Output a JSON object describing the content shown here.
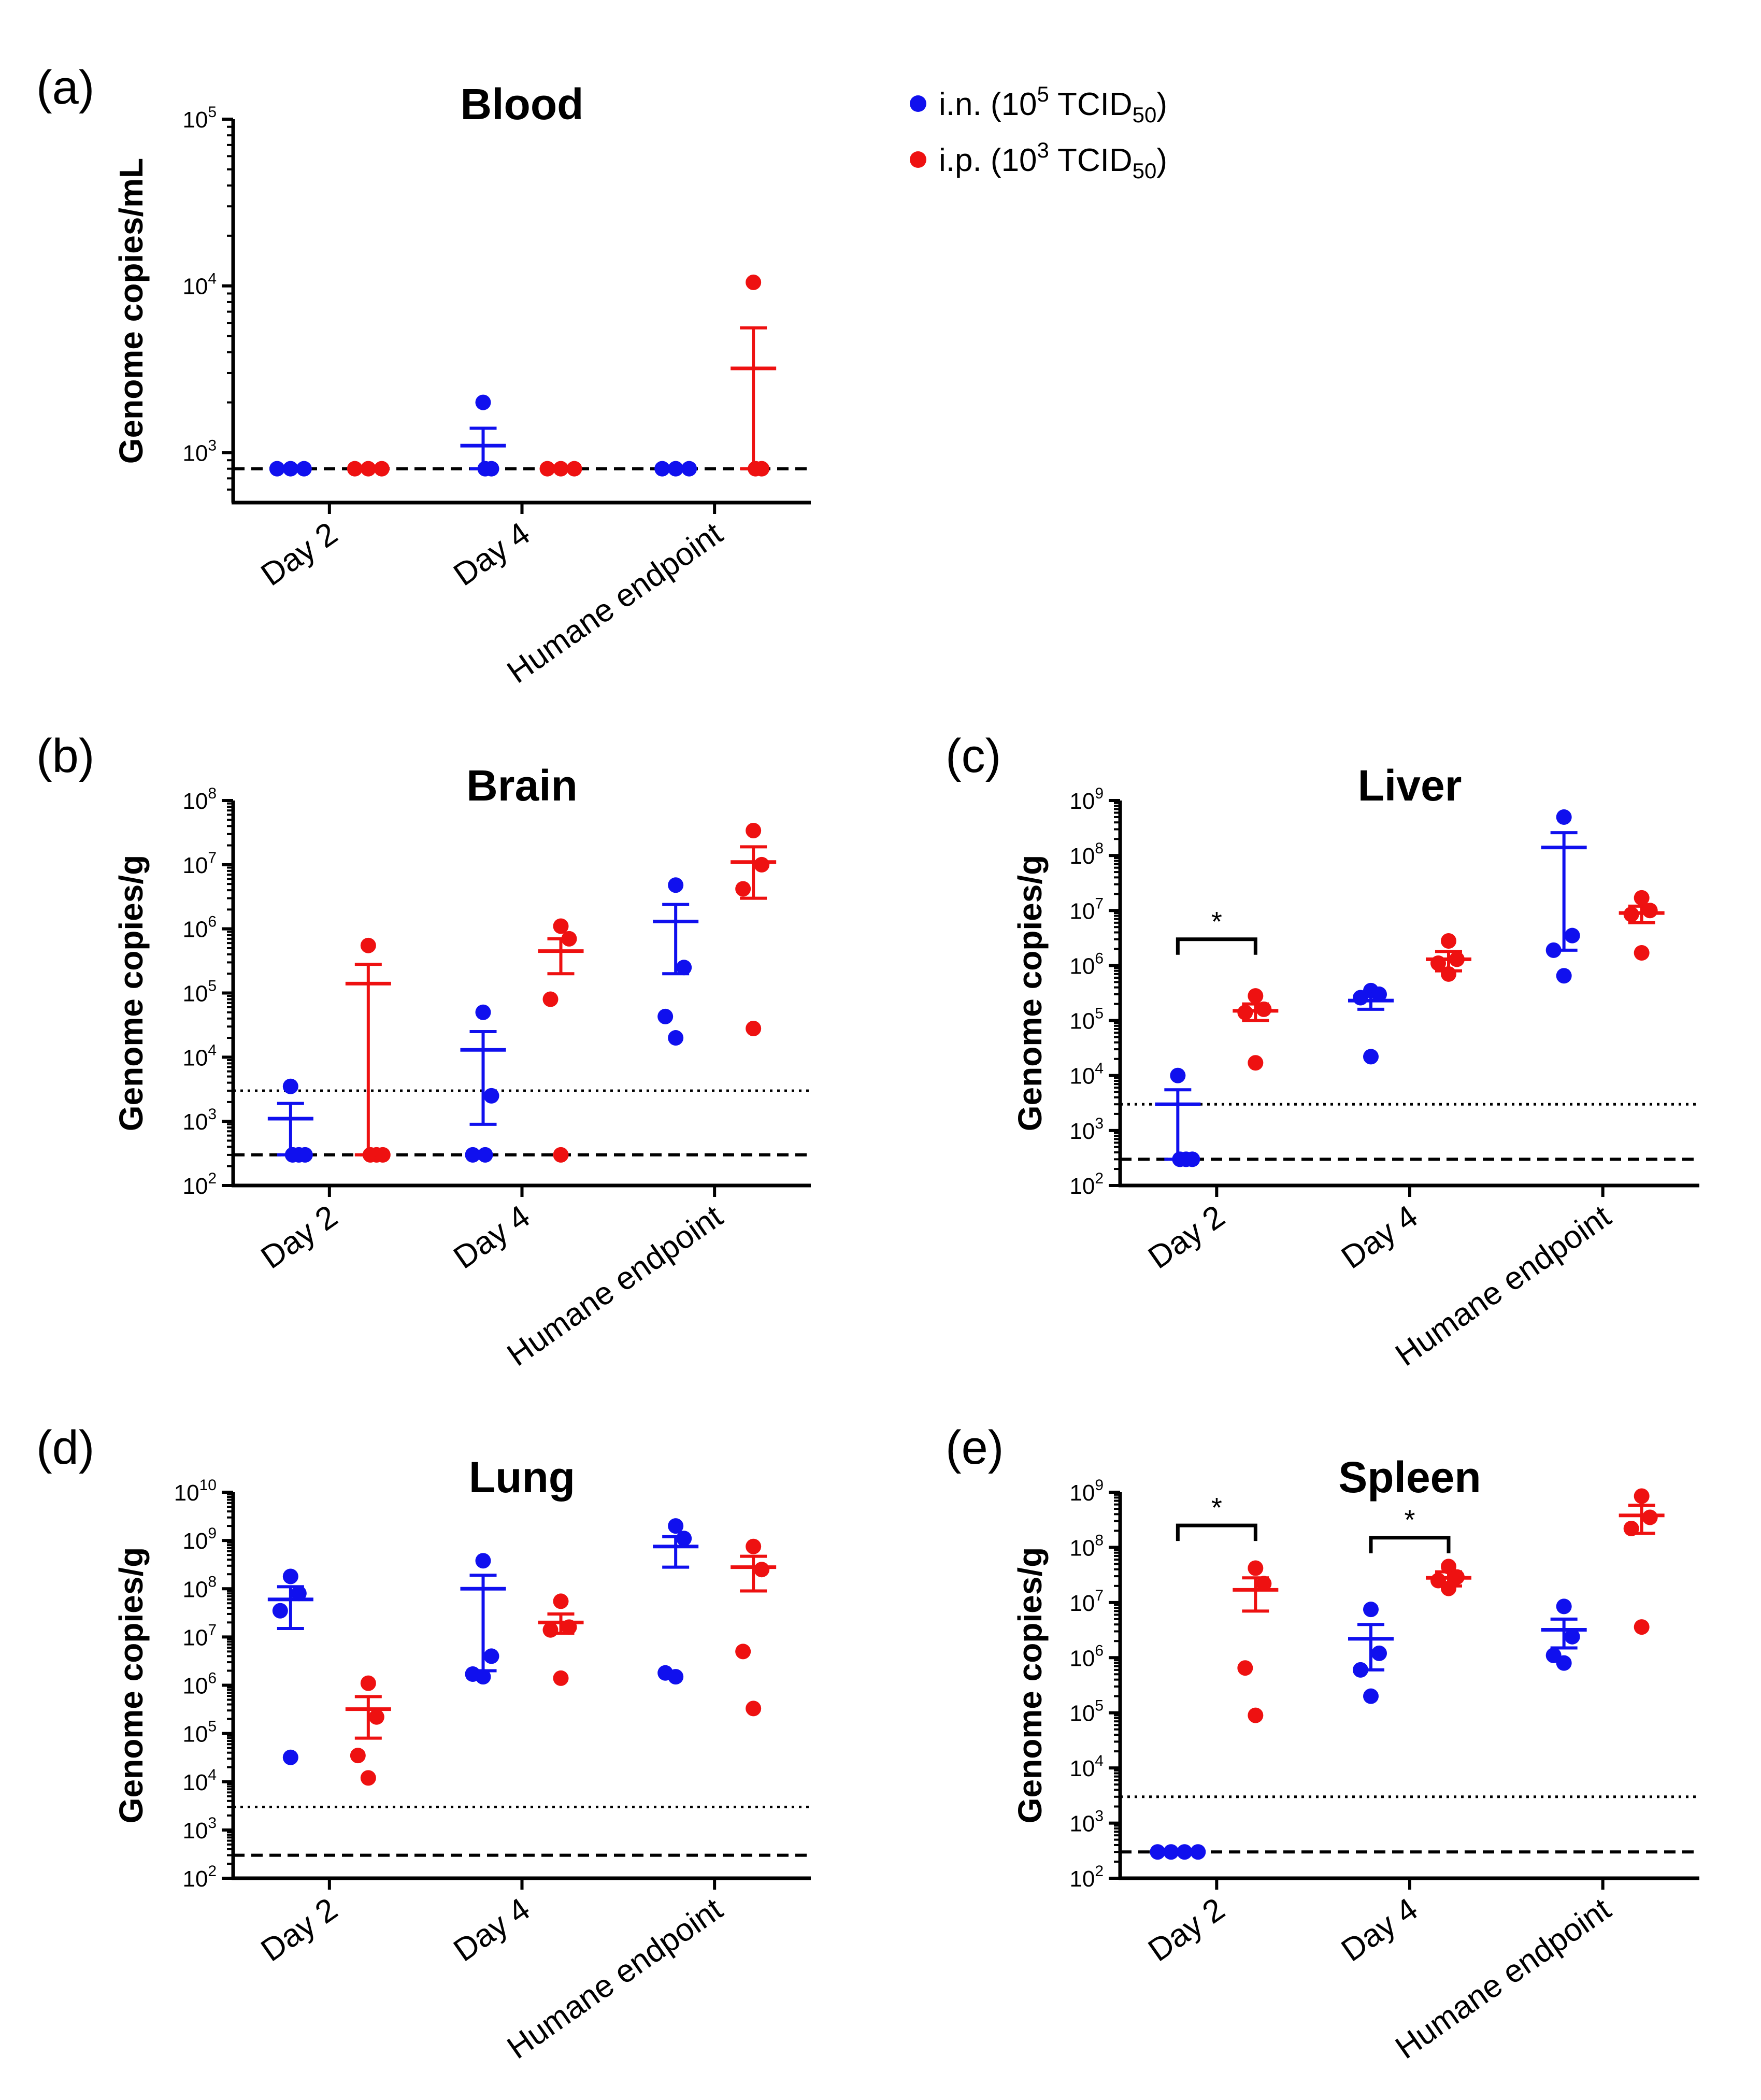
{
  "legend": {
    "series": [
      {
        "key": "in",
        "color": "#1010ee",
        "prefix": "i.n. (10",
        "exp": "5",
        "unit": " TCID",
        "sub": "50",
        "suffix": ")"
      },
      {
        "key": "ip",
        "color": "#ee1111",
        "prefix": "i.p. (10",
        "exp": "3",
        "unit": " TCID",
        "sub": "50",
        "suffix": ")"
      }
    ]
  },
  "chart_data": [
    {
      "id": "a",
      "panel": "(a)",
      "type": "scatter",
      "title": "Blood",
      "ylabel": "Genome copies/mL",
      "yscale": "log",
      "ylim_exp": [
        2.7,
        5
      ],
      "tick_exps": [
        3,
        4,
        5
      ],
      "categories": [
        "Day 2",
        "Day 4",
        "Humane endpoint"
      ],
      "dashed_line": 800,
      "dotted_line": null,
      "series": [
        {
          "name": "i.n.",
          "color": "#1010ee",
          "groups": [
            {
              "points": [
                800,
                800,
                800
              ],
              "mean": null,
              "err": null
            },
            {
              "points": [
                2000,
                800,
                800
              ],
              "mean": 1100,
              "err": [
                800,
                1400
              ]
            },
            {
              "points": [
                800,
                800,
                800
              ],
              "mean": null,
              "err": null
            }
          ]
        },
        {
          "name": "i.p.",
          "color": "#ee1111",
          "groups": [
            {
              "points": [
                800,
                800,
                800
              ],
              "mean": null,
              "err": null
            },
            {
              "points": [
                800,
                800,
                800
              ],
              "mean": null,
              "err": null
            },
            {
              "points": [
                10500,
                800,
                800
              ],
              "mean": 3200,
              "err": [
                800,
                5600
              ]
            }
          ]
        }
      ],
      "significance": []
    },
    {
      "id": "b",
      "panel": "(b)",
      "type": "scatter",
      "title": "Brain",
      "ylabel": "Genome copies/g",
      "yscale": "log",
      "ylim_exp": [
        2,
        8
      ],
      "tick_exps": [
        2,
        3,
        4,
        5,
        6,
        7,
        8
      ],
      "categories": [
        "Day 2",
        "Day 4",
        "Humane endpoint"
      ],
      "dashed_line": 300,
      "dotted_line": 3000,
      "series": [
        {
          "name": "i.n.",
          "color": "#1010ee",
          "groups": [
            {
              "points": [
                3500,
                300,
                300,
                300
              ],
              "mean": 1100,
              "err": [
                300,
                1900
              ]
            },
            {
              "points": [
                50000,
                2500,
                300,
                300
              ],
              "mean": 13000,
              "err": [
                900,
                25000
              ]
            },
            {
              "points": [
                4800000,
                250000,
                43000,
                20000
              ],
              "mean": 1300000,
              "err": [
                200000,
                2400000
              ]
            }
          ]
        },
        {
          "name": "i.p.",
          "color": "#ee1111",
          "groups": [
            {
              "points": [
                550000,
                300,
                300,
                300
              ],
              "mean": 140000,
              "err": [
                300,
                280000
              ]
            },
            {
              "points": [
                1100000,
                700000,
                80000,
                300
              ],
              "mean": 450000,
              "err": [
                200000,
                700000
              ]
            },
            {
              "points": [
                34000000,
                10000000,
                4200000,
                28000
              ],
              "mean": 11000000,
              "err": [
                3000000,
                19000000
              ]
            }
          ]
        }
      ],
      "significance": []
    },
    {
      "id": "c",
      "panel": "(c)",
      "type": "scatter",
      "title": "Liver",
      "ylabel": "Genome copies/g",
      "yscale": "log",
      "ylim_exp": [
        2,
        9
      ],
      "tick_exps": [
        2,
        3,
        4,
        5,
        6,
        7,
        8,
        9
      ],
      "categories": [
        "Day 2",
        "Day 4",
        "Humane endpoint"
      ],
      "dashed_line": 300,
      "dotted_line": 3000,
      "series": [
        {
          "name": "i.n.",
          "color": "#1010ee",
          "groups": [
            {
              "points": [
                10000,
                300,
                300,
                300
              ],
              "mean": 3000,
              "err": [
                300,
                5500
              ]
            },
            {
              "points": [
                350000,
                300000,
                260000,
                22000
              ],
              "mean": 230000,
              "err": [
                160000,
                320000
              ]
            },
            {
              "points": [
                500000000,
                3500000,
                1900000,
                650000
              ],
              "mean": 140000000,
              "err": [
                1900000,
                260000000
              ]
            }
          ]
        },
        {
          "name": "i.p.",
          "color": "#ee1111",
          "groups": [
            {
              "points": [
                280000,
                160000,
                140000,
                17000
              ],
              "mean": 150000,
              "err": [
                100000,
                200000
              ]
            },
            {
              "points": [
                2800000,
                1300000,
                1100000,
                700000
              ],
              "mean": 1300000,
              "err": [
                800000,
                1800000
              ]
            },
            {
              "points": [
                17000000,
                10000000,
                8500000,
                1700000
              ],
              "mean": 9000000,
              "err": [
                6000000,
                12000000
              ]
            }
          ]
        }
      ],
      "significance": [
        {
          "category": 0,
          "text": "*",
          "value": 3000000
        }
      ]
    },
    {
      "id": "d",
      "panel": "(d)",
      "type": "scatter",
      "title": "Lung",
      "ylabel": "Genome copies/g",
      "yscale": "log",
      "ylim_exp": [
        2,
        10
      ],
      "tick_exps": [
        2,
        3,
        4,
        5,
        6,
        7,
        8,
        9,
        10
      ],
      "categories": [
        "Day 2",
        "Day 4",
        "Humane endpoint"
      ],
      "dashed_line": 300,
      "dotted_line": 3000,
      "series": [
        {
          "name": "i.n.",
          "color": "#1010ee",
          "groups": [
            {
              "points": [
                180000000,
                80000000,
                35000000,
                32000
              ],
              "mean": 60000000,
              "err": [
                15000000,
                110000000
              ]
            },
            {
              "points": [
                380000000,
                4000000,
                1700000,
                1500000
              ],
              "mean": 100000000,
              "err": [
                2000000,
                190000000
              ]
            },
            {
              "points": [
                2000000000,
                1100000000,
                1800000,
                1500000
              ],
              "mean": 750000000,
              "err": [
                280000000,
                1200000000
              ]
            }
          ]
        },
        {
          "name": "i.p.",
          "color": "#ee1111",
          "groups": [
            {
              "points": [
                1100000,
                220000,
                35000,
                12000
              ],
              "mean": 320000,
              "err": [
                80000,
                580000
              ]
            },
            {
              "points": [
                55000000,
                16000000,
                14000000,
                1400000
              ],
              "mean": 20000000,
              "err": [
                12000000,
                30000000
              ]
            },
            {
              "points": [
                750000000,
                250000000,
                5000000,
                330000
              ],
              "mean": 280000000,
              "err": [
                90000000,
                470000000
              ]
            }
          ]
        }
      ],
      "significance": []
    },
    {
      "id": "e",
      "panel": "(e)",
      "type": "scatter",
      "title": "Spleen",
      "ylabel": "Genome copies/g",
      "yscale": "log",
      "ylim_exp": [
        2,
        9
      ],
      "tick_exps": [
        2,
        3,
        4,
        5,
        6,
        7,
        8,
        9
      ],
      "categories": [
        "Day 2",
        "Day 4",
        "Humane endpoint"
      ],
      "dashed_line": 300,
      "dotted_line": 3000,
      "series": [
        {
          "name": "i.n.",
          "color": "#1010ee",
          "groups": [
            {
              "points": [
                300,
                300,
                300,
                300
              ],
              "mean": null,
              "err": null
            },
            {
              "points": [
                7500000,
                1200000,
                600000,
                200000
              ],
              "mean": 2200000,
              "err": [
                600000,
                4000000
              ]
            },
            {
              "points": [
                8500000,
                2400000,
                1100000,
                800000
              ],
              "mean": 3200000,
              "err": [
                1500000,
                5000000
              ]
            }
          ]
        },
        {
          "name": "i.p.",
          "color": "#ee1111",
          "groups": [
            {
              "points": [
                42000000,
                22000000,
                650000,
                90000
              ],
              "mean": 17000000,
              "err": [
                7000000,
                28000000
              ]
            },
            {
              "points": [
                45000000,
                29000000,
                25000000,
                18000000
              ],
              "mean": 28000000,
              "err": [
                20000000,
                36000000
              ]
            },
            {
              "points": [
                850000000,
                350000000,
                220000000,
                3600000
              ],
              "mean": 380000000,
              "err": [
                180000000,
                580000000
              ]
            }
          ]
        }
      ],
      "significance": [
        {
          "category": 0,
          "text": "*",
          "value": 250000000
        },
        {
          "category": 1,
          "text": "*",
          "value": 150000000
        }
      ]
    }
  ]
}
